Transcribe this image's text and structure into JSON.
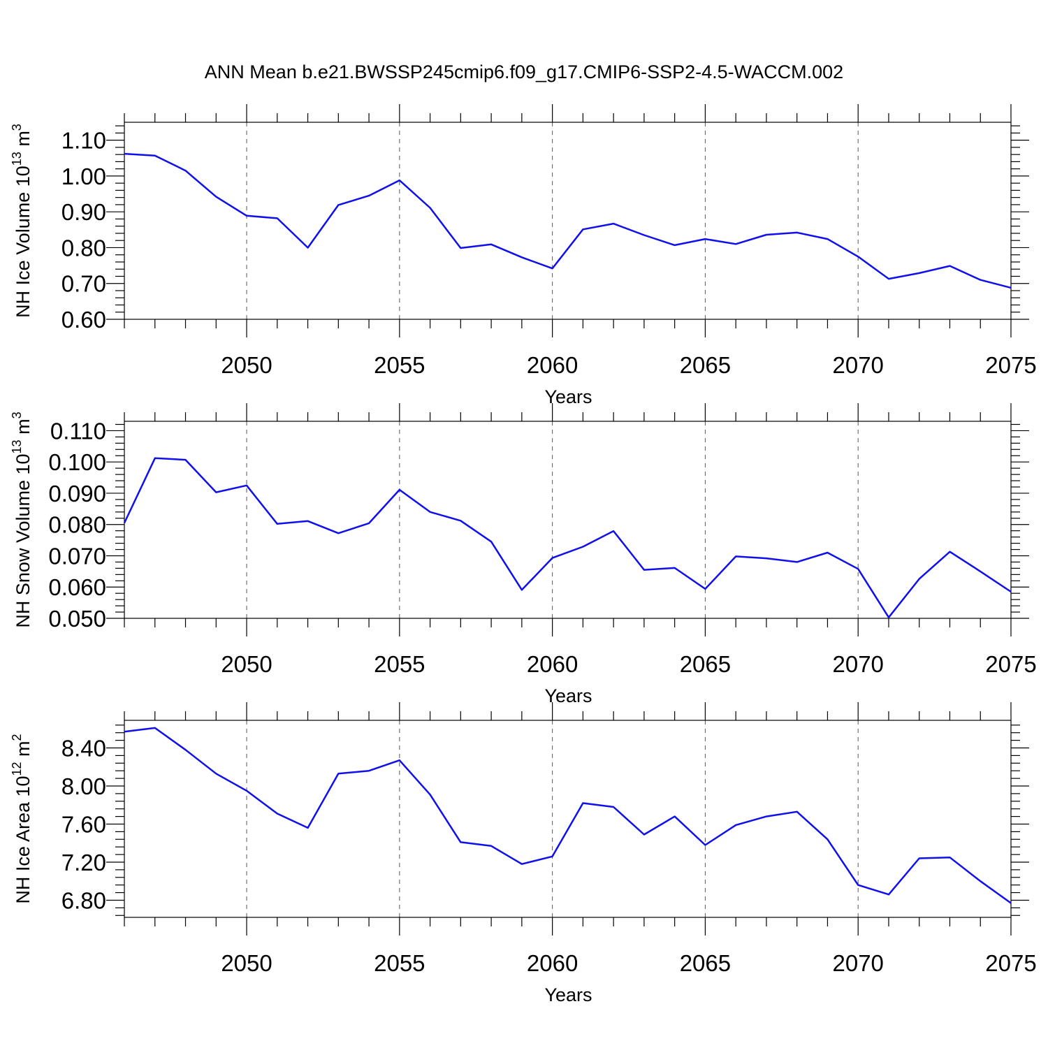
{
  "title": "ANN Mean b.e21.BWSSP245cmip6.f09_g17.CMIP6-SSP2-4.5-WACCM.002",
  "line_color": "#1010ee",
  "chart_data": [
    {
      "type": "line",
      "xlabel": "Years",
      "ylabel": "NH Ice Volume 10",
      "ylabel_exp": "13",
      "ylabel_unit": " m",
      "ylabel_unit_exp": "3",
      "xlim": [
        2046,
        2075
      ],
      "ylim": [
        0.6,
        1.15
      ],
      "xticks": [
        2050,
        2055,
        2060,
        2065,
        2070,
        2075
      ],
      "yticks": [
        "0.60",
        "0.70",
        "0.80",
        "0.90",
        "1.00",
        "1.10"
      ],
      "grid": "vertical dashed at major x ticks",
      "x": [
        2046,
        2047,
        2048,
        2049,
        2050,
        2051,
        2052,
        2053,
        2054,
        2055,
        2056,
        2057,
        2058,
        2059,
        2060,
        2061,
        2062,
        2063,
        2064,
        2065,
        2066,
        2067,
        2068,
        2069,
        2070,
        2071,
        2072,
        2073,
        2074,
        2075
      ],
      "y": [
        1.062,
        1.057,
        1.015,
        0.942,
        0.889,
        0.882,
        0.8,
        0.919,
        0.945,
        0.988,
        0.911,
        0.799,
        0.809,
        0.773,
        0.742,
        0.851,
        0.867,
        0.835,
        0.807,
        0.824,
        0.81,
        0.836,
        0.842,
        0.824,
        0.775,
        0.713,
        0.729,
        0.749,
        0.71,
        0.688
      ]
    },
    {
      "type": "line",
      "xlabel": "Years",
      "ylabel": "NH Snow Volume 10",
      "ylabel_exp": "13",
      "ylabel_unit": " m",
      "ylabel_unit_exp": "3",
      "xlim": [
        2046,
        2075
      ],
      "ylim": [
        0.05,
        0.113
      ],
      "xticks": [
        2050,
        2055,
        2060,
        2065,
        2070,
        2075
      ],
      "yticks": [
        "0.050",
        "0.060",
        "0.070",
        "0.080",
        "0.090",
        "0.100",
        "0.110"
      ],
      "grid": "vertical dashed at major x ticks",
      "x": [
        2046,
        2047,
        2048,
        2049,
        2050,
        2051,
        2052,
        2053,
        2054,
        2055,
        2056,
        2057,
        2058,
        2059,
        2060,
        2061,
        2062,
        2063,
        2064,
        2065,
        2066,
        2067,
        2068,
        2069,
        2070,
        2071,
        2072,
        2073,
        2074,
        2075
      ],
      "y": [
        0.0805,
        0.1012,
        0.1007,
        0.0903,
        0.0925,
        0.0802,
        0.0811,
        0.0772,
        0.0804,
        0.0911,
        0.084,
        0.0812,
        0.0745,
        0.0591,
        0.0693,
        0.0729,
        0.0779,
        0.0655,
        0.0661,
        0.0594,
        0.0698,
        0.0692,
        0.068,
        0.071,
        0.0658,
        0.0503,
        0.0626,
        0.0713,
        0.065,
        0.0585
      ]
    },
    {
      "type": "line",
      "xlabel": "Years",
      "ylabel": "NH Ice Area 10",
      "ylabel_exp": "12",
      "ylabel_unit": " m",
      "ylabel_unit_exp": "2",
      "xlim": [
        2046,
        2075
      ],
      "ylim": [
        6.62,
        8.69
      ],
      "xticks": [
        2050,
        2055,
        2060,
        2065,
        2070,
        2075
      ],
      "yticks": [
        "6.80",
        "7.20",
        "7.60",
        "8.00",
        "8.40"
      ],
      "grid": "vertical dashed at major x ticks",
      "x": [
        2046,
        2047,
        2048,
        2049,
        2050,
        2051,
        2052,
        2053,
        2054,
        2055,
        2056,
        2057,
        2058,
        2059,
        2060,
        2061,
        2062,
        2063,
        2064,
        2065,
        2066,
        2067,
        2068,
        2069,
        2070,
        2071,
        2072,
        2073,
        2074,
        2075
      ],
      "y": [
        8.57,
        8.61,
        8.38,
        8.13,
        7.95,
        7.71,
        7.56,
        8.13,
        8.16,
        8.27,
        7.91,
        7.41,
        7.37,
        7.18,
        7.26,
        7.82,
        7.78,
        7.49,
        7.68,
        7.38,
        7.59,
        7.68,
        7.73,
        7.44,
        6.96,
        6.86,
        7.24,
        7.25,
        7.0,
        6.77
      ]
    }
  ]
}
